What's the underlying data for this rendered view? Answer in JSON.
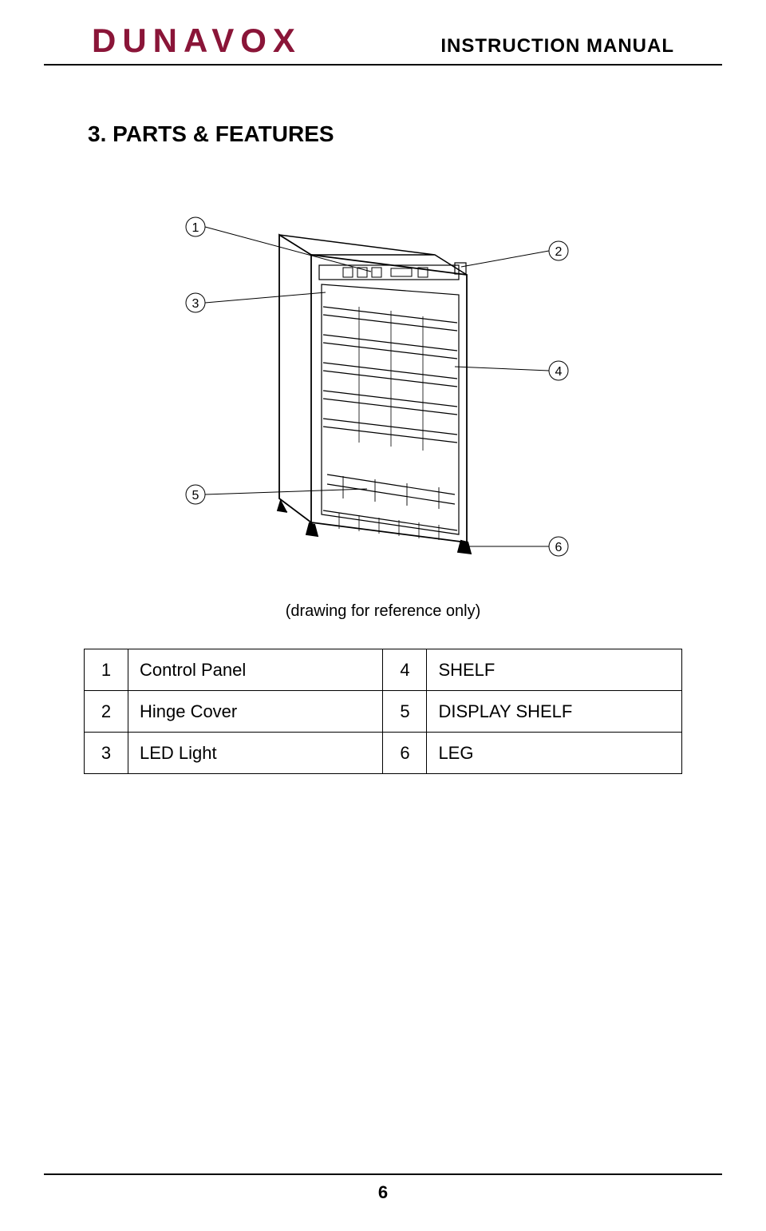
{
  "header": {
    "logo": "DUNAVOX",
    "doc_title": "INSTRUCTION MANUAL"
  },
  "section": {
    "heading": "3. PARTS & FEATURES"
  },
  "diagram": {
    "caption": "(drawing for reference only)",
    "callouts": {
      "c1": "1",
      "c2": "2",
      "c3": "3",
      "c4": "4",
      "c5": "5",
      "c6": "6"
    },
    "stroke_color": "#000000",
    "stroke_width": 1.8,
    "thin_stroke": 1
  },
  "parts_table": {
    "rows": [
      {
        "num_a": "1",
        "label_a": "Control Panel",
        "num_b": "4",
        "label_b": "SHELF"
      },
      {
        "num_a": "2",
        "label_a": "Hinge Cover",
        "num_b": "5",
        "label_b": "DISPLAY SHELF"
      },
      {
        "num_a": "3",
        "label_a": "LED Light",
        "num_b": "6",
        "label_b": "LEG"
      }
    ]
  },
  "footer": {
    "page_number": "6"
  },
  "colors": {
    "brand": "#8a1538",
    "text": "#000000",
    "bg": "#ffffff"
  }
}
